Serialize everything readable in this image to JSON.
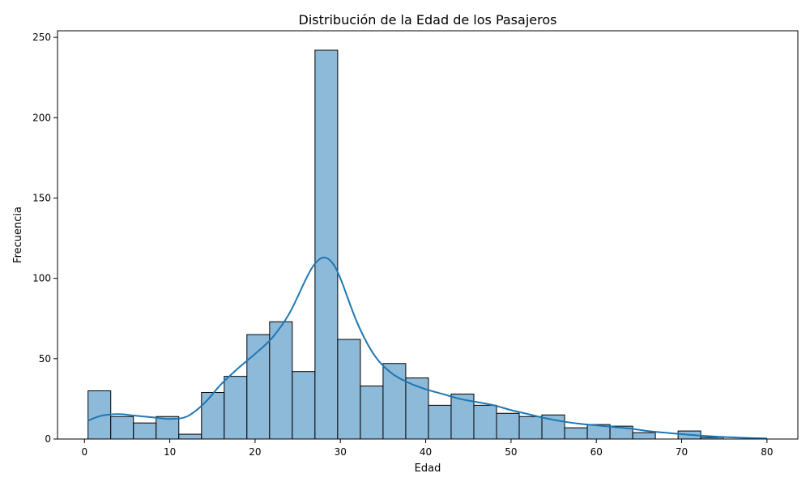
{
  "chart_data": {
    "type": "histogram",
    "title": "Distribución de la Edad de los Pasajeros",
    "xlabel": "Edad",
    "ylabel": "Frecuencia",
    "xlim": [
      -3.16,
      83.62
    ],
    "ylim": [
      0,
      254.1
    ],
    "xticks": [
      0,
      10,
      20,
      30,
      40,
      50,
      60,
      70,
      80
    ],
    "yticks": [
      0,
      50,
      100,
      150,
      200,
      250
    ],
    "bin_edges": [
      0.42,
      3.08,
      5.74,
      8.4,
      11.06,
      13.72,
      16.38,
      19.04,
      21.7,
      24.36,
      27.02,
      29.68,
      32.34,
      35.0,
      37.66,
      40.32,
      42.98,
      45.64,
      48.3,
      50.96,
      53.62,
      56.28,
      58.94,
      61.6,
      64.26,
      66.92,
      69.58,
      72.24,
      74.9
    ],
    "counts": [
      30,
      14,
      10,
      14,
      3,
      29,
      39,
      65,
      73,
      42,
      242,
      62,
      33,
      47,
      38,
      21,
      28,
      21,
      16,
      14,
      15,
      7,
      9,
      8,
      4,
      0,
      5,
      1
    ],
    "kde": {
      "x": [
        0.42,
        2,
        4,
        6,
        8,
        10,
        12,
        14,
        16,
        18,
        20,
        22,
        24,
        26,
        27,
        28,
        29,
        30,
        32,
        34,
        36,
        38,
        40,
        42,
        44,
        46,
        48,
        50,
        52,
        54,
        56,
        58,
        60,
        62,
        64,
        66,
        68,
        70,
        72,
        74,
        76,
        78,
        80
      ],
      "y": [
        11.5,
        14.5,
        15.5,
        14.5,
        13.5,
        12.5,
        14,
        22,
        34,
        44,
        53,
        63,
        78,
        100,
        109,
        113,
        110,
        100,
        72,
        52,
        41,
        35,
        31,
        28,
        25,
        23,
        21,
        18,
        15.5,
        13,
        11,
        9.5,
        8.5,
        7.5,
        6.5,
        5,
        4,
        3,
        2.2,
        1.5,
        1,
        0.6,
        0.4
      ]
    },
    "colors": {
      "bar_fill": "#8ebad9",
      "bar_edge": "#000000",
      "kde_line": "#1f77b4"
    },
    "grid": false,
    "legend": "none"
  }
}
